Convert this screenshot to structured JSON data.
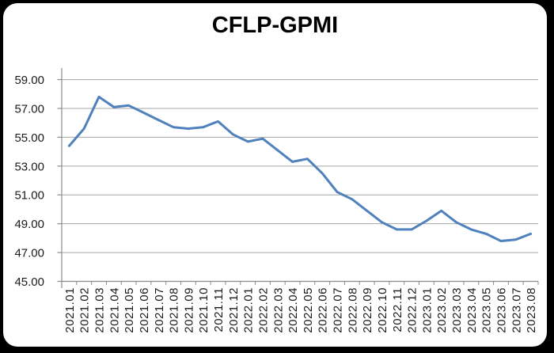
{
  "page": {
    "background": "#000000",
    "card_background": "#ffffff"
  },
  "chart_data": {
    "type": "line",
    "title": "CFLP-GPMI",
    "xlabel": "",
    "ylabel": "",
    "legend": "none",
    "grid": true,
    "categories": [
      "2021.01",
      "2021.02",
      "2021.03",
      "2021.04",
      "2021.05",
      "2021.06",
      "2021.07",
      "2021.08",
      "2021.09",
      "2021.10",
      "2021.11",
      "2021.12",
      "2022.01",
      "2022.02",
      "2022.03",
      "2022.04",
      "2022.05",
      "2022.06",
      "2022.07",
      "2022.08",
      "2022.09",
      "2022.10",
      "2022.11",
      "2022.12",
      "2023.01",
      "2023.02",
      "2023.03",
      "2023.04",
      "2023.05",
      "2023.06",
      "2023.07",
      "2023.08"
    ],
    "series": [
      {
        "name": "CFLP-GPMI",
        "values": [
          54.4,
          55.6,
          57.8,
          57.1,
          57.2,
          56.7,
          56.2,
          55.7,
          55.6,
          55.7,
          56.1,
          55.2,
          54.7,
          54.9,
          54.1,
          53.3,
          53.5,
          52.5,
          51.2,
          50.7,
          49.9,
          49.1,
          48.6,
          48.6,
          49.2,
          49.9,
          49.1,
          48.6,
          48.3,
          47.8,
          47.9,
          48.3
        ]
      }
    ],
    "ylim": [
      45,
      59.8
    ],
    "yticks": [
      45,
      47,
      49,
      51,
      53,
      55,
      57,
      59
    ],
    "ytick_decimals": 2,
    "colors": {
      "line": "#4f81bd",
      "gridline": "#a6a6a6",
      "axis": "#8c8c8c",
      "tick_label": "#1a1a1a",
      "title": "#000000"
    }
  }
}
